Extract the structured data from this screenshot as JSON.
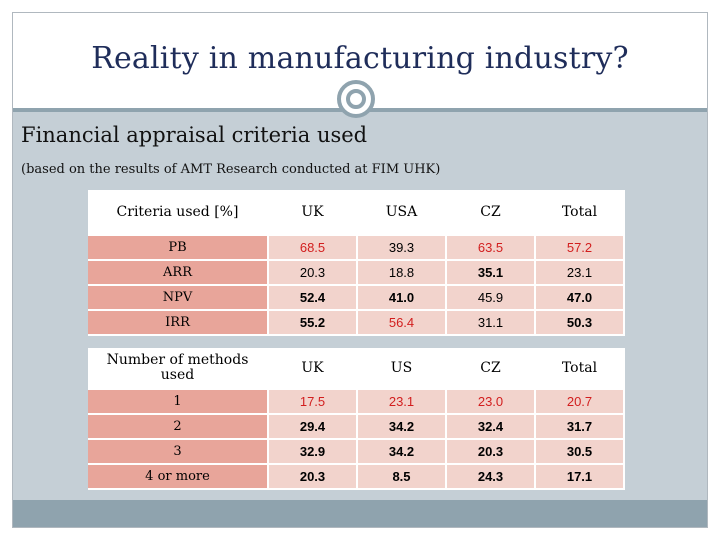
{
  "title": "Reality in manufacturing industry?",
  "subtitle": "Financial appraisal criteria used",
  "note": "(based on the results of AMT Research conducted at FIM UHK)",
  "colors": {
    "title": "#1f2d5a",
    "label_cell": "#e8a59a",
    "value_cell": "#f2d3cc",
    "highlight": "#d21e1e",
    "band": "#c5cfd6",
    "accent": "#8fa3ae"
  },
  "table1": {
    "headers": [
      "Criteria used [%]",
      "UK",
      "USA",
      "CZ",
      "Total"
    ],
    "rows": [
      {
        "label": "PB",
        "values": [
          "68.5",
          "39.3",
          "63.5",
          "57.2"
        ]
      },
      {
        "label": "ARR",
        "values": [
          "20.3",
          "18.8",
          "35.1",
          "23.1"
        ]
      },
      {
        "label": "NPV",
        "values": [
          "52.4",
          "41.0",
          "45.9",
          "47.0"
        ]
      },
      {
        "label": "IRR",
        "values": [
          "55.2",
          "56.4",
          "31.1",
          "50.3"
        ]
      }
    ]
  },
  "table2": {
    "headers": [
      "Number of methods used",
      "UK",
      "US",
      "CZ",
      "Total"
    ],
    "rows": [
      {
        "label": "1",
        "values": [
          "17.5",
          "23.1",
          "23.0",
          "20.7"
        ]
      },
      {
        "label": "2",
        "values": [
          "29.4",
          "34.2",
          "32.4",
          "31.7"
        ]
      },
      {
        "label": "3",
        "values": [
          "32.9",
          "34.2",
          "20.3",
          "30.5"
        ]
      },
      {
        "label": "4 or more",
        "values": [
          "20.3",
          "8.5",
          "24.3",
          "17.1"
        ]
      }
    ]
  }
}
